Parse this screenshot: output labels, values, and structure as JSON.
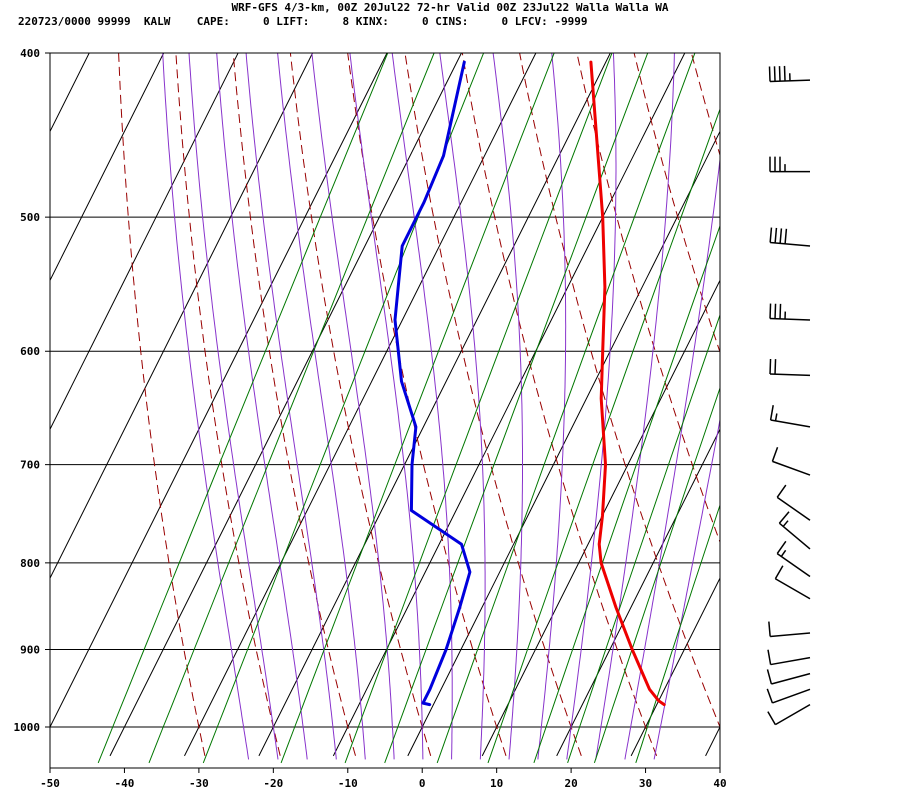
{
  "header": {
    "line1": "WRF-GFS 4/3-km, 00Z 20Jul22 72-hr Valid 00Z 23Jul22 Walla Walla WA",
    "line2": "220723/0000 99999  KALW    CAPE:     0 LIFT:     8 KINX:     0 CINS:     0 LFCV: -9999"
  },
  "colors": {
    "temperature": "#ee0000",
    "dewpoint": "#0000dd",
    "isotherm_grid": "#000000",
    "dry_adiabat": "#990000",
    "moist_adiabat": "#8833cc",
    "mixing_ratio": "#007700",
    "wind_barb": "#000000"
  },
  "chart_data": {
    "type": "line",
    "subtype": "skew-t log-p sounding",
    "xlabel": "",
    "ylabel": "",
    "xlim": [
      -50,
      40
    ],
    "ylim": [
      1040,
      400
    ],
    "y_scale": "log",
    "x_ticks": [
      -50,
      -40,
      -30,
      -20,
      -10,
      0,
      10,
      20,
      30,
      40
    ],
    "y_ticks": [
      400,
      500,
      600,
      700,
      800,
      900,
      1000
    ],
    "x_tick_labels": [
      "-50",
      "-40",
      "-30",
      "-20",
      "-10",
      "0",
      "10",
      "20",
      "30",
      "40"
    ],
    "y_tick_labels": [
      "400",
      "500",
      "600",
      "700",
      "800",
      "900",
      "1000"
    ],
    "grid": true,
    "series": [
      {
        "key": "temperature",
        "points": [
          {
            "p": 970,
            "t": 31
          },
          {
            "p": 965,
            "t": 30
          },
          {
            "p": 950,
            "t": 28
          },
          {
            "p": 900,
            "t": 23
          },
          {
            "p": 850,
            "t": 18
          },
          {
            "p": 800,
            "t": 13
          },
          {
            "p": 780,
            "t": 11.5
          },
          {
            "p": 750,
            "t": 10
          },
          {
            "p": 700,
            "t": 7
          },
          {
            "p": 640,
            "t": 2
          },
          {
            "p": 600,
            "t": -1
          },
          {
            "p": 550,
            "t": -5
          },
          {
            "p": 500,
            "t": -10
          },
          {
            "p": 450,
            "t": -16
          },
          {
            "p": 405,
            "t": -22
          }
        ]
      },
      {
        "key": "dewpoint",
        "points": [
          {
            "p": 970,
            "t": -0.5
          },
          {
            "p": 968,
            "t": -1.5
          },
          {
            "p": 950,
            "t": -1.5
          },
          {
            "p": 900,
            "t": -2
          },
          {
            "p": 850,
            "t": -3
          },
          {
            "p": 810,
            "t": -4
          },
          {
            "p": 780,
            "t": -7
          },
          {
            "p": 745,
            "t": -16
          },
          {
            "p": 700,
            "t": -19
          },
          {
            "p": 665,
            "t": -21
          },
          {
            "p": 625,
            "t": -26
          },
          {
            "p": 575,
            "t": -31
          },
          {
            "p": 520,
            "t": -35
          },
          {
            "p": 490,
            "t": -35
          },
          {
            "p": 460,
            "t": -35.5
          },
          {
            "p": 405,
            "t": -39
          }
        ]
      }
    ],
    "isotherms": [
      -120,
      -110,
      -100,
      -90,
      -80,
      -70,
      -60,
      -50,
      -40,
      -30,
      -20,
      -10,
      0,
      10,
      20,
      30,
      40
    ],
    "dry_adiabats_theta_c": [
      -30,
      -20,
      -10,
      0,
      10,
      20,
      30,
      40,
      50,
      60,
      70,
      80,
      90,
      100,
      110,
      120
    ],
    "moist_adiabats_c": [
      -24,
      -20,
      -16,
      -12,
      -8,
      -4,
      0,
      4,
      8,
      12,
      16,
      20,
      24,
      28,
      32
    ],
    "mixing_ratio_lines_gkg": [
      0.1,
      0.2,
      0.4,
      1,
      2,
      3,
      5,
      8,
      12,
      16,
      20,
      28
    ],
    "wind_barbs": [
      {
        "p": 970,
        "dir": 240,
        "kt": 12
      },
      {
        "p": 950,
        "dir": 250,
        "kt": 12
      },
      {
        "p": 930,
        "dir": 255,
        "kt": 12
      },
      {
        "p": 910,
        "dir": 260,
        "kt": 12
      },
      {
        "p": 880,
        "dir": 265,
        "kt": 8
      },
      {
        "p": 840,
        "dir": 300,
        "kt": 10
      },
      {
        "p": 815,
        "dir": 305,
        "kt": 15
      },
      {
        "p": 785,
        "dir": 310,
        "kt": 15
      },
      {
        "p": 755,
        "dir": 305,
        "kt": 10
      },
      {
        "p": 710,
        "dir": 290,
        "kt": 10
      },
      {
        "p": 665,
        "dir": 280,
        "kt": 15
      },
      {
        "p": 620,
        "dir": 272,
        "kt": 20
      },
      {
        "p": 575,
        "dir": 272,
        "kt": 35
      },
      {
        "p": 520,
        "dir": 275,
        "kt": 40
      },
      {
        "p": 470,
        "dir": 270,
        "kt": 35
      },
      {
        "p": 415,
        "dir": 268,
        "kt": 45
      }
    ]
  }
}
